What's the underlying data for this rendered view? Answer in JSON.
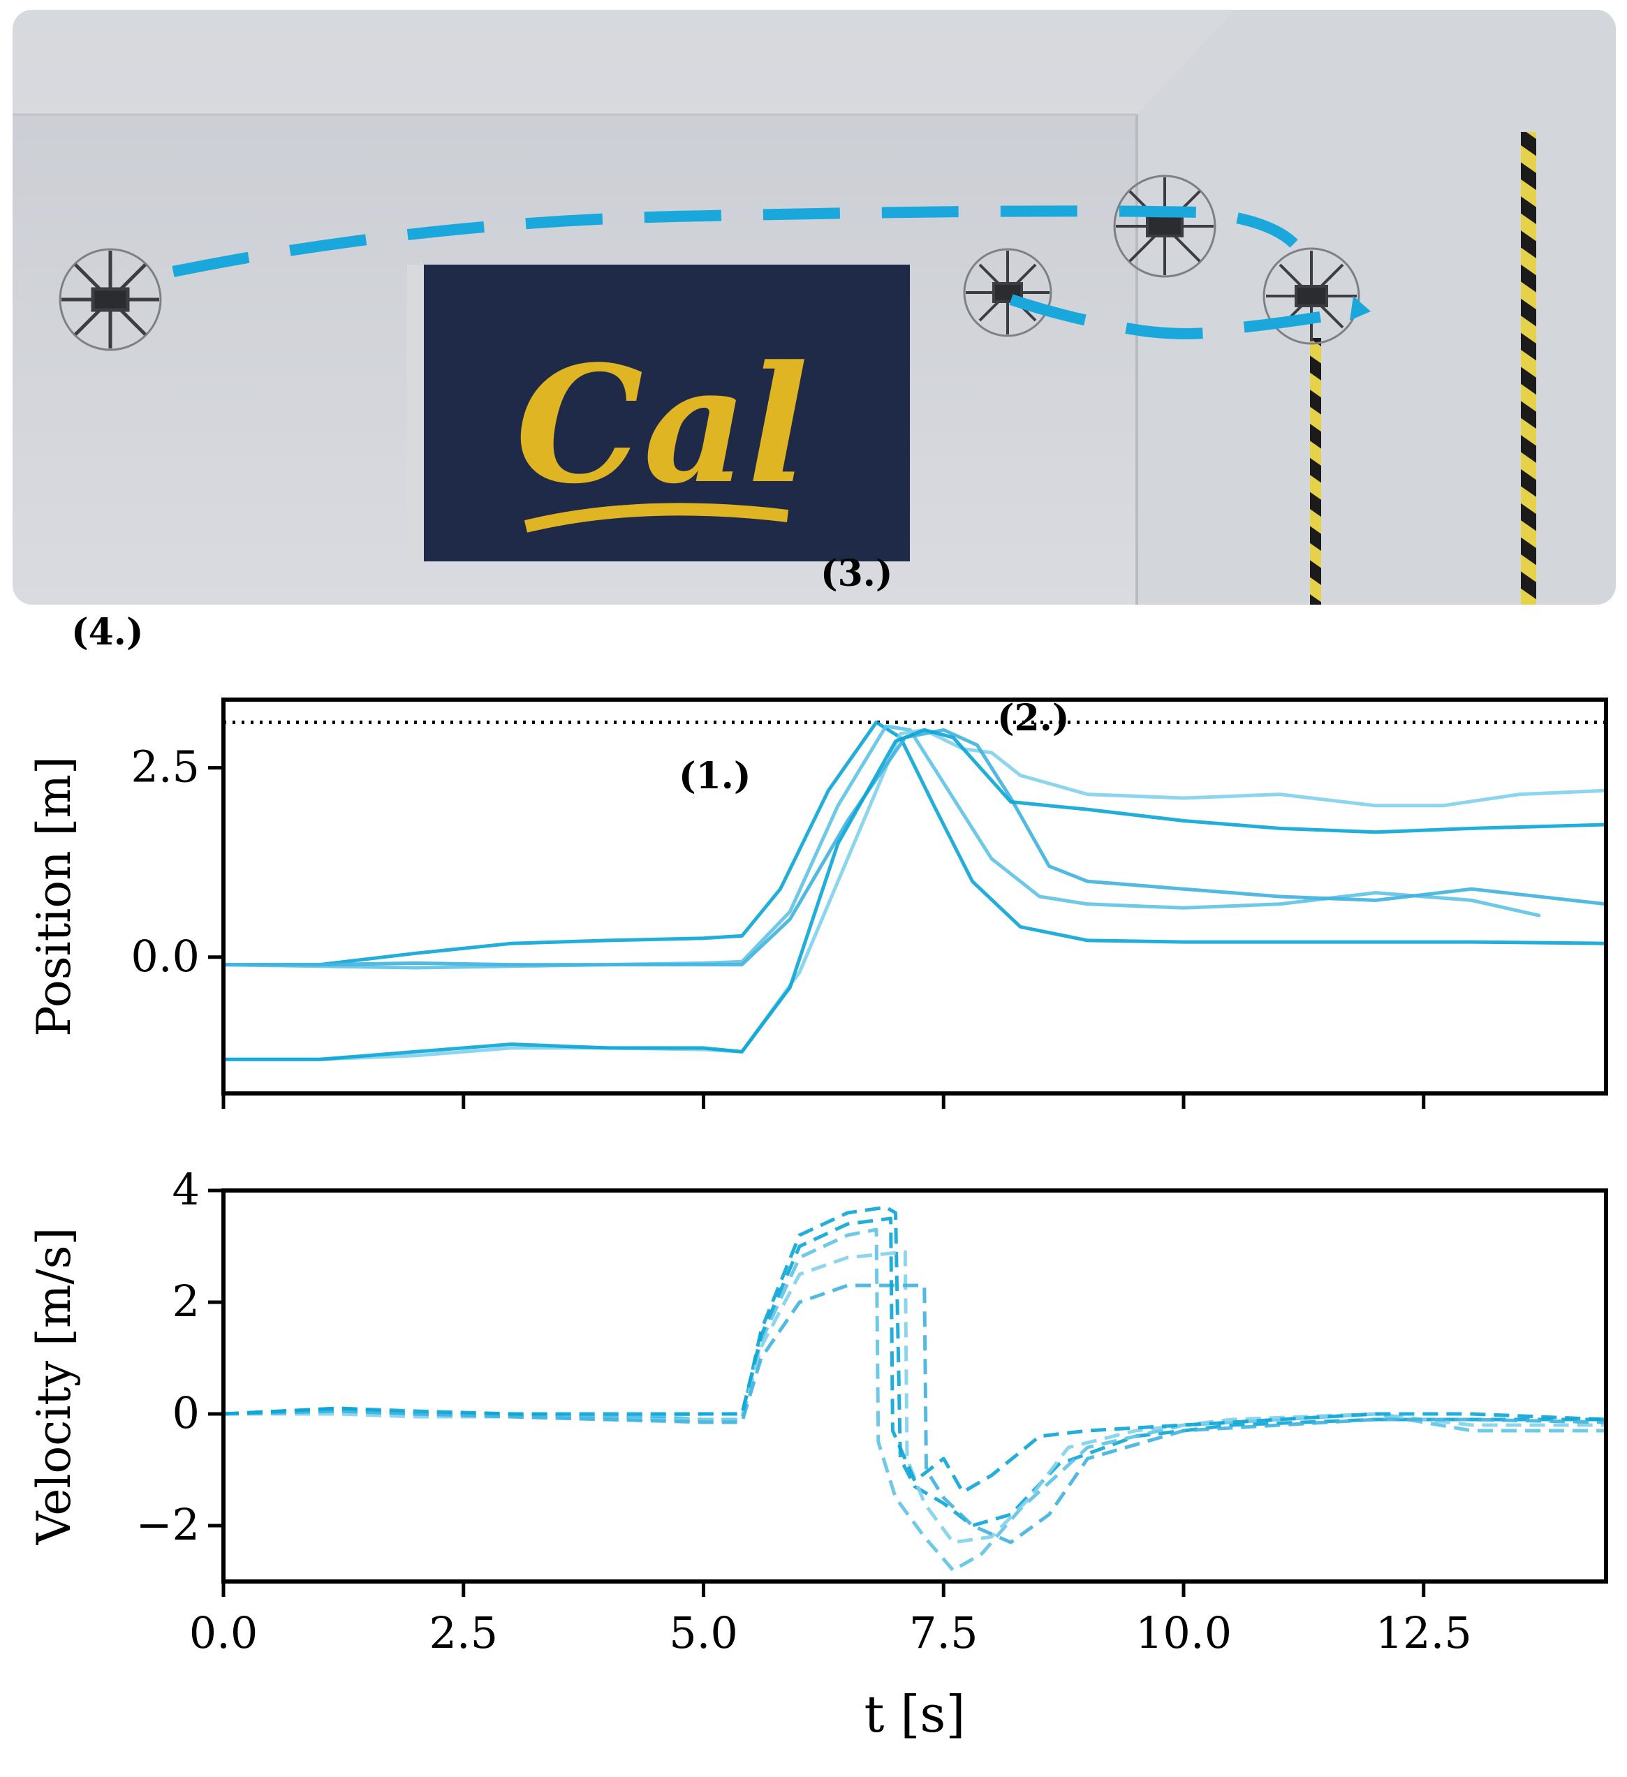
{
  "annotations": [
    "(1.)",
    "(2.)",
    "(3.)",
    "(4.)"
  ],
  "photo": {
    "description_icons": [
      "wall-background",
      "cal-flag",
      "drone-icon",
      "hazard-pole",
      "trajectory-dashed"
    ],
    "flag_text": "Cal",
    "trajectory_color": "#1aa8dc"
  },
  "colors": {
    "series": [
      "#0aa5d6",
      "#5ec2e6",
      "#7fd0ec",
      "#3fb3df"
    ],
    "axis": "#000000",
    "reference": "#000000"
  },
  "chart_data": [
    {
      "type": "line",
      "ylabel": "Position [m]",
      "xlim": [
        0,
        14.4
      ],
      "ylim": [
        -1.8,
        3.4
      ],
      "yticks": [
        0.0,
        2.5
      ],
      "ytick_labels": [
        "0.0",
        "2.5"
      ],
      "xticks": [
        0,
        2.5,
        5,
        7.5,
        10,
        12.5
      ],
      "reference_line": {
        "y": 3.1,
        "style": "dotted"
      },
      "series": [
        {
          "x": [
            0,
            1,
            2,
            3,
            4,
            5,
            5.4,
            5.8,
            6.3,
            6.8,
            7.05,
            7.4,
            7.8,
            8.3,
            9,
            10,
            11,
            12,
            13,
            14.4
          ],
          "y": [
            -0.1,
            -0.1,
            0.05,
            0.18,
            0.22,
            0.25,
            0.28,
            0.9,
            2.2,
            3.1,
            2.9,
            2.0,
            1.0,
            0.4,
            0.22,
            0.2,
            0.2,
            0.2,
            0.2,
            0.18
          ]
        },
        {
          "x": [
            0,
            1,
            2,
            3,
            4,
            5,
            5.4,
            5.9,
            6.4,
            6.9,
            7.15,
            7.5,
            8,
            8.5,
            9,
            10,
            11,
            12,
            13,
            13.7
          ],
          "y": [
            -0.1,
            -0.12,
            -0.14,
            -0.12,
            -0.1,
            -0.08,
            -0.06,
            0.6,
            2.0,
            3.05,
            3.0,
            2.3,
            1.3,
            0.8,
            0.7,
            0.65,
            0.7,
            0.85,
            0.75,
            0.55
          ]
        },
        {
          "x": [
            0,
            1,
            2,
            3,
            4,
            5,
            5.4,
            6,
            6.5,
            7.05,
            7.3,
            7.7,
            8,
            8.3,
            9,
            10,
            11,
            12,
            12.7,
            13.5,
            14.4
          ],
          "y": [
            -1.35,
            -1.35,
            -1.3,
            -1.2,
            -1.2,
            -1.22,
            -1.25,
            -0.2,
            1.3,
            2.95,
            3.0,
            2.75,
            2.7,
            2.4,
            2.15,
            2.1,
            2.15,
            2.0,
            2.0,
            2.15,
            2.2
          ]
        },
        {
          "x": [
            0,
            1,
            2,
            3,
            4,
            5,
            5.4,
            5.9,
            6.5,
            7.1,
            7.5,
            7.85,
            8.2,
            8.6,
            9,
            10,
            11,
            12,
            13,
            14.4
          ],
          "y": [
            -0.1,
            -0.1,
            -0.08,
            -0.1,
            -0.1,
            -0.1,
            -0.1,
            0.5,
            1.8,
            2.9,
            3.0,
            2.8,
            2.1,
            1.2,
            1.0,
            0.9,
            0.8,
            0.75,
            0.9,
            0.7
          ]
        },
        {
          "x": [
            0,
            1,
            2,
            3,
            4,
            5,
            5.4,
            5.9,
            6.4,
            7.0,
            7.3,
            7.6,
            8.2,
            9,
            10,
            11,
            12,
            13,
            14.4
          ],
          "y": [
            -1.35,
            -1.35,
            -1.25,
            -1.15,
            -1.2,
            -1.2,
            -1.25,
            -0.4,
            1.5,
            2.85,
            3.0,
            2.9,
            2.05,
            1.95,
            1.8,
            1.7,
            1.65,
            1.7,
            1.75
          ]
        }
      ]
    },
    {
      "type": "line",
      "ylabel": "Velocity [m/s]",
      "xlabel": "t [s]",
      "xlim": [
        0,
        14.4
      ],
      "ylim": [
        -3,
        4
      ],
      "yticks": [
        -2,
        0,
        2,
        4
      ],
      "ytick_labels": [
        "−2",
        "0",
        "2",
        "4"
      ],
      "xticks": [
        0,
        2.5,
        5,
        7.5,
        10,
        12.5
      ],
      "xtick_labels": [
        "0.0",
        "2.5",
        "5.0",
        "7.5",
        "10.0",
        "12.5"
      ],
      "line_style": "dashed",
      "series": [
        {
          "x": [
            0,
            1.2,
            2,
            3,
            4,
            5,
            5.4,
            5.6,
            6,
            6.5,
            6.9,
            7.0,
            7.05,
            7.2,
            7.5,
            7.8,
            8.2,
            8.7,
            9.5,
            10.5,
            12,
            13,
            14.4
          ],
          "y": [
            0,
            0.1,
            0,
            0,
            -0.05,
            -0.1,
            -0.1,
            1.5,
            3.2,
            3.6,
            3.7,
            3.6,
            -0.8,
            -1.3,
            -1.6,
            -2.0,
            -1.8,
            -0.9,
            -0.4,
            -0.2,
            -0.1,
            -0.1,
            -0.1
          ]
        },
        {
          "x": [
            0,
            1.2,
            2,
            3,
            4,
            5,
            5.4,
            5.6,
            6,
            6.5,
            6.8,
            6.82,
            7.0,
            7.3,
            7.6,
            7.9,
            8.3,
            9,
            10,
            12,
            13,
            14.4
          ],
          "y": [
            0,
            0.05,
            0,
            -0.05,
            -0.05,
            0,
            0,
            1.3,
            2.8,
            3.2,
            3.3,
            -0.5,
            -1.5,
            -2.2,
            -2.8,
            -2.5,
            -1.7,
            -0.6,
            -0.2,
            0,
            -0.3,
            -0.3
          ]
        },
        {
          "x": [
            0,
            1.2,
            2,
            3,
            4,
            5,
            5.4,
            5.6,
            6,
            6.5,
            7.1,
            7.12,
            7.3,
            7.6,
            8.0,
            8.4,
            8.8,
            9.5,
            10.5,
            12,
            13,
            14.4
          ],
          "y": [
            0,
            0,
            -0.05,
            -0.05,
            -0.1,
            -0.1,
            -0.1,
            1.2,
            2.5,
            2.8,
            2.9,
            -0.8,
            -1.6,
            -2.3,
            -2.2,
            -1.5,
            -0.6,
            -0.3,
            -0.1,
            0,
            -0.2,
            -0.2
          ]
        },
        {
          "x": [
            0,
            1.2,
            2,
            3,
            4,
            5,
            5.4,
            5.6,
            6,
            6.5,
            7.3,
            7.32,
            7.5,
            7.8,
            8.2,
            8.6,
            9,
            10,
            11,
            12,
            13,
            14.4
          ],
          "y": [
            0,
            0.05,
            0,
            -0.05,
            -0.1,
            -0.15,
            -0.15,
            1.0,
            2.0,
            2.3,
            2.3,
            -1.0,
            -1.5,
            -2.0,
            -2.3,
            -1.8,
            -0.8,
            -0.3,
            -0.2,
            -0.1,
            -0.1,
            -0.15
          ]
        },
        {
          "x": [
            0,
            1.2,
            2,
            3,
            4,
            5,
            5.4,
            5.6,
            6,
            6.5,
            6.95,
            6.97,
            7.2,
            7.5,
            7.7,
            8.0,
            8.5,
            9,
            10,
            12,
            13,
            14.4
          ],
          "y": [
            0,
            0.1,
            0.05,
            0,
            0,
            0,
            0,
            1.4,
            3.0,
            3.4,
            3.5,
            -0.3,
            -1.2,
            -0.8,
            -1.4,
            -1.1,
            -0.4,
            -0.3,
            -0.2,
            0,
            0,
            -0.1
          ]
        }
      ]
    }
  ]
}
